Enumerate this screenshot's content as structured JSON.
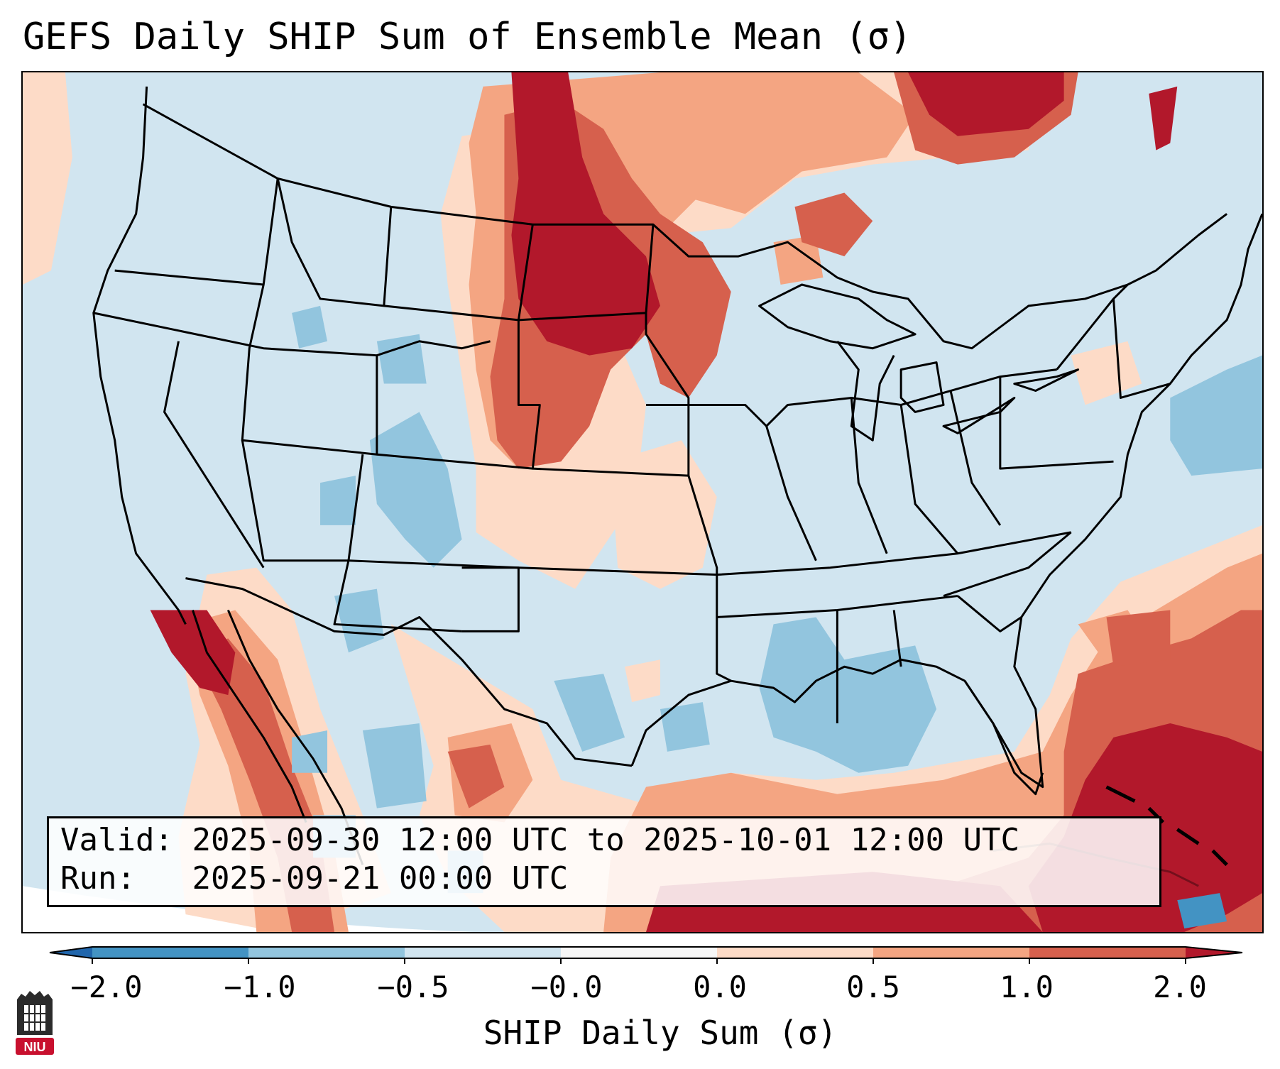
{
  "title": "GEFS Daily SHIP Sum of Ensemble Mean (σ)",
  "info": {
    "valid_label": "Valid:",
    "valid_value": "2025-09-30 12:00 UTC to 2025-10-01 12:00 UTC",
    "run_label": "Run:",
    "run_value": "2025-09-21 00:00 UTC"
  },
  "colorbar": {
    "label": "SHIP Daily Sum (σ)",
    "ticks": [
      "−2.0",
      "−1.0",
      "−0.5",
      "−0.0",
      "0.0",
      "0.5",
      "1.0",
      "2.0"
    ],
    "bins": [
      {
        "range": "<-2.0",
        "color": "#2166ac"
      },
      {
        "range": "-2.0 to -1.0",
        "color": "#4393c3"
      },
      {
        "range": "-1.0 to -0.5",
        "color": "#92c5de"
      },
      {
        "range": "-0.5 to -0.0",
        "color": "#d1e5f0"
      },
      {
        "range": "-0.0 to 0.0",
        "color": "#f7f7f7"
      },
      {
        "range": "0.0 to 0.5",
        "color": "#fddbc7"
      },
      {
        "range": "0.5 to 1.0",
        "color": "#f4a582"
      },
      {
        "range": "1.0 to 2.0",
        "color": "#d6604d"
      },
      {
        "range": ">2.0",
        "color": "#b2182b"
      }
    ]
  },
  "colors": {
    "background_field": "#d1e5f0",
    "weak_negative": "#92c5de",
    "moderate_negative": "#4393c3",
    "weak_positive": "#fddbc7",
    "moderate_positive": "#f4a582",
    "strong_positive": "#d6604d",
    "extreme_positive": "#b2182b"
  },
  "logo": {
    "text": "NIU",
    "color": "#c8102e"
  }
}
